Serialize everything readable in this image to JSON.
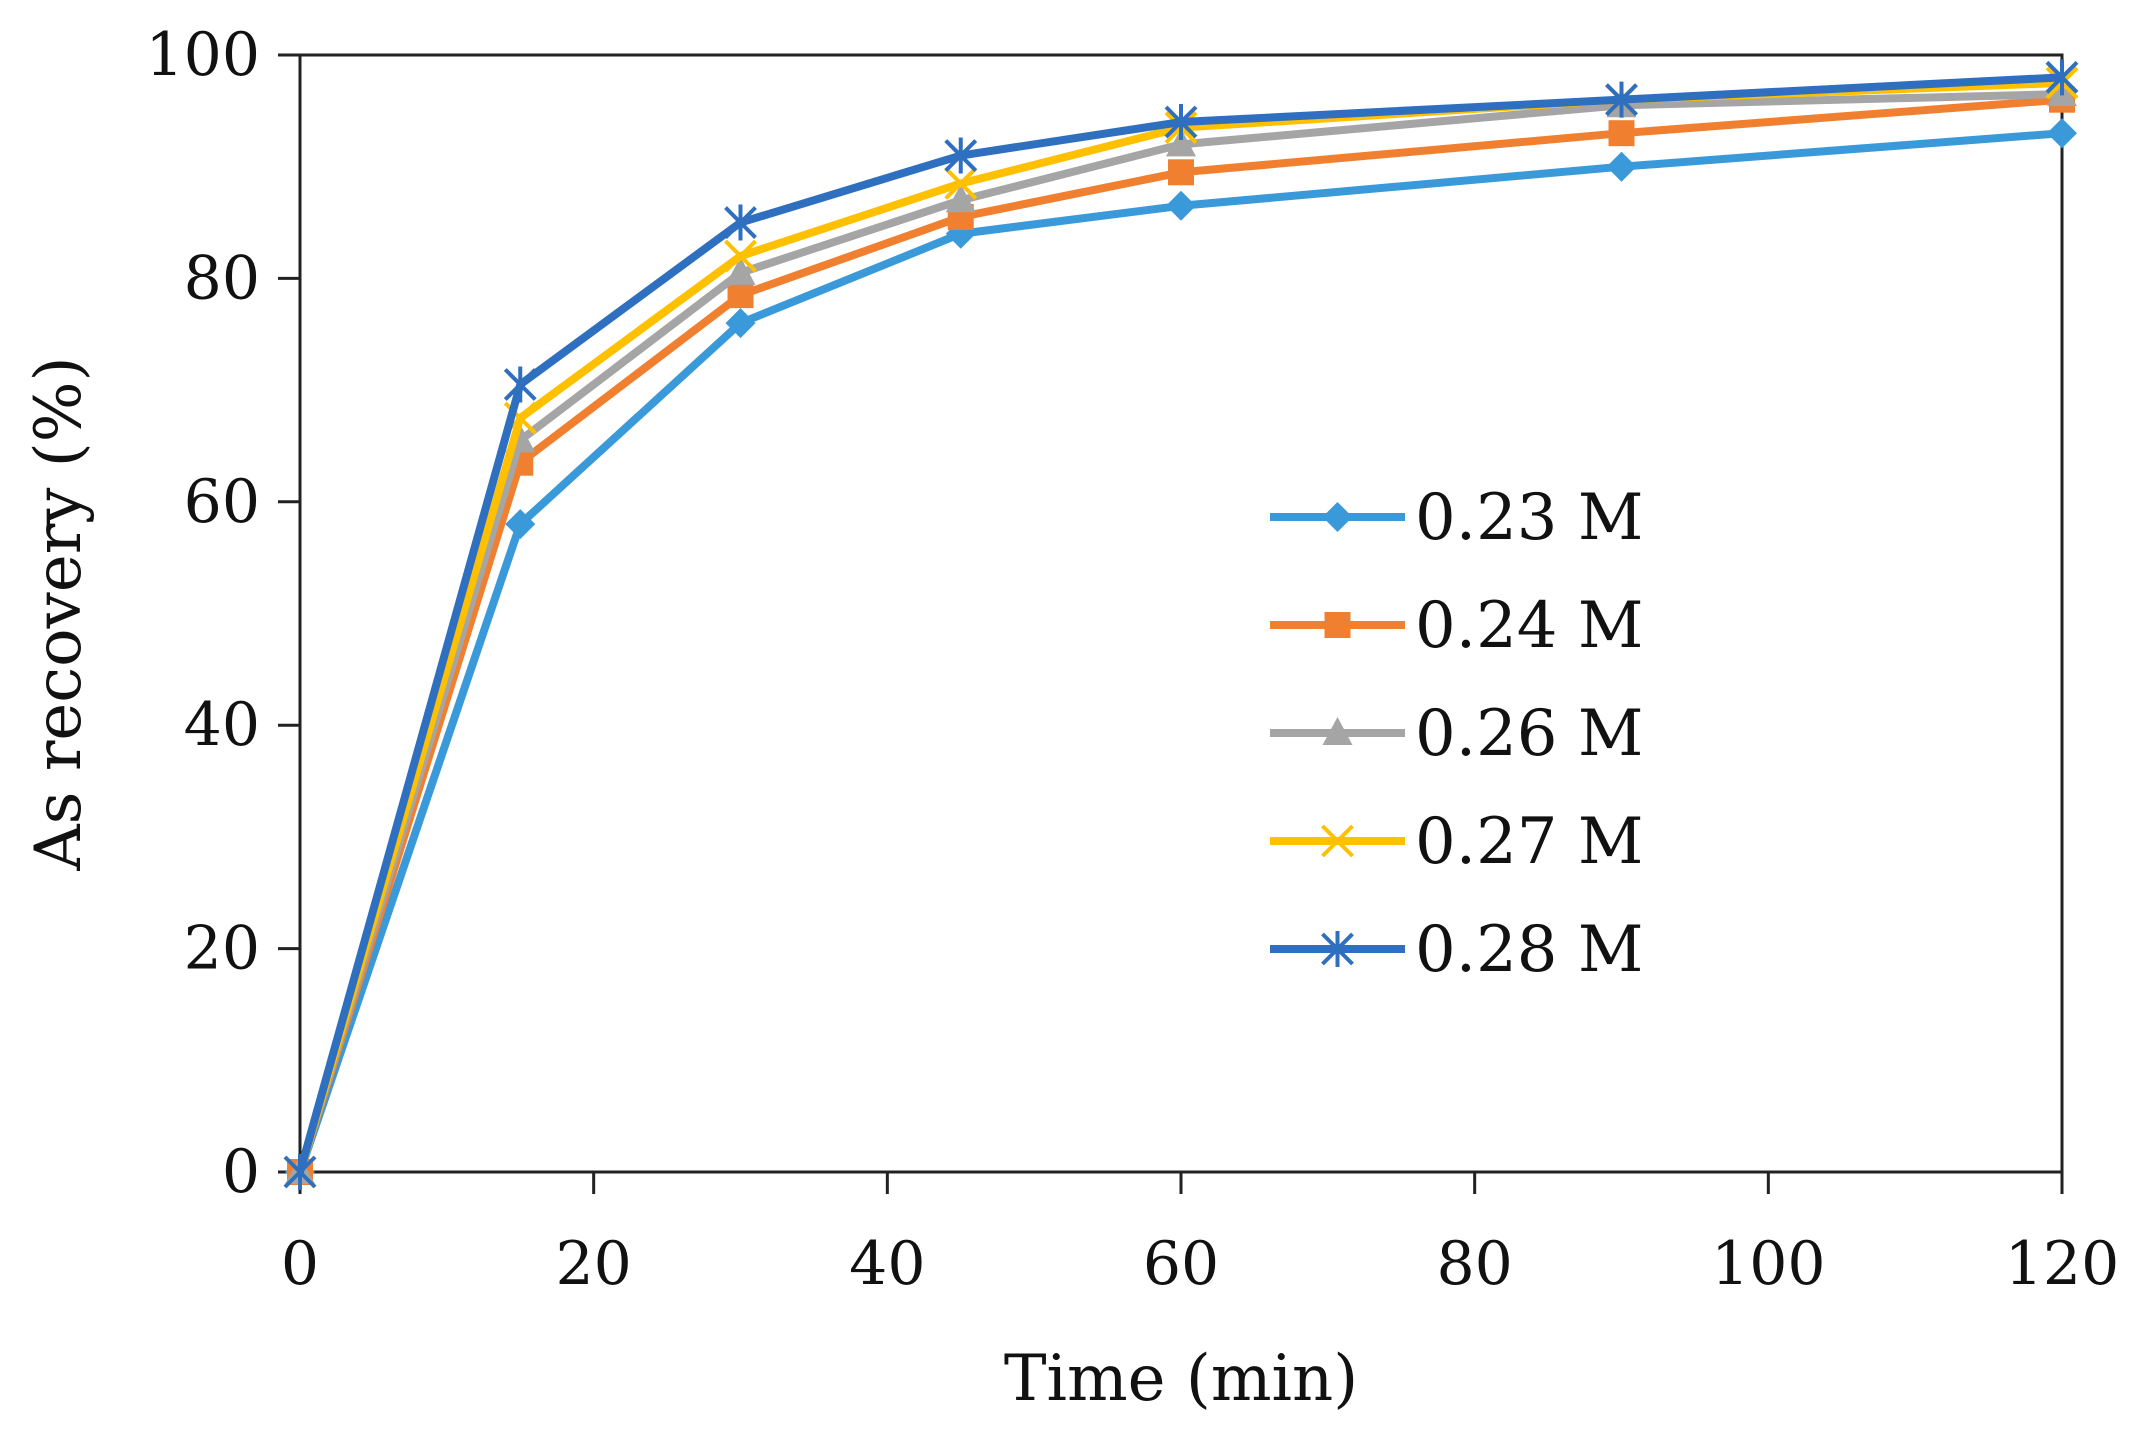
{
  "chart_data": {
    "type": "line",
    "title": "",
    "xlabel": "Time (min)",
    "ylabel": "As recovery (%)",
    "xlim": [
      0,
      120
    ],
    "ylim": [
      0,
      100
    ],
    "xticks": [
      0,
      20,
      40,
      60,
      80,
      100,
      120
    ],
    "yticks": [
      0,
      20,
      40,
      60,
      80,
      100
    ],
    "grid": false,
    "legend_position": "right-center",
    "x": [
      0,
      15,
      30,
      45,
      60,
      90,
      120
    ],
    "series": [
      {
        "name": "0.23 M",
        "color": "#3a9ad9",
        "marker": "diamond",
        "values": [
          0,
          58,
          76,
          84,
          86.5,
          90,
          93
        ]
      },
      {
        "name": "0.24 M",
        "color": "#f08030",
        "marker": "square",
        "values": [
          0,
          63.5,
          78.5,
          85.5,
          89.5,
          93,
          96
        ]
      },
      {
        "name": "0.26 M",
        "color": "#a5a5a5",
        "marker": "triangle",
        "values": [
          0,
          65.5,
          80.5,
          87,
          92,
          95.5,
          96.5
        ]
      },
      {
        "name": "0.27 M",
        "color": "#ffc000",
        "marker": "x",
        "values": [
          0,
          67.5,
          82,
          88.5,
          93.5,
          96,
          97.5
        ]
      },
      {
        "name": "0.28 M",
        "color": "#2e6fbf",
        "marker": "asterisk",
        "values": [
          0,
          70.5,
          85,
          91,
          94,
          96,
          98
        ]
      }
    ]
  }
}
